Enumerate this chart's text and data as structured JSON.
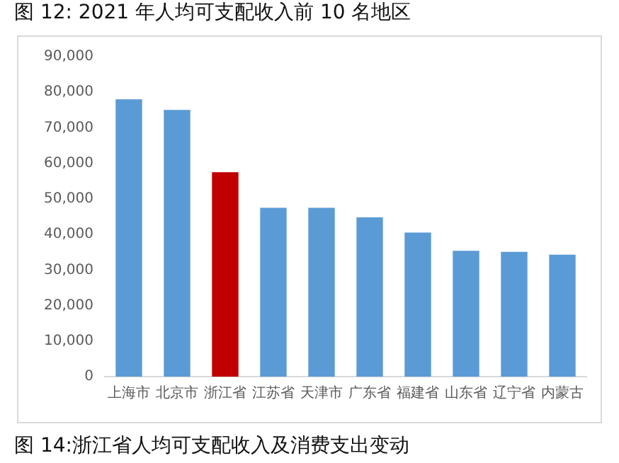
{
  "chart_data": {
    "type": "bar",
    "title": "图  12: 2021 年人均可支配收入前 10 名地区",
    "categories": [
      "上海市",
      "北京市",
      "浙江省",
      "江苏省",
      "天津市",
      "广东省",
      "福建省",
      "山东省",
      "辽宁省",
      "内蒙古"
    ],
    "values": [
      78000,
      75000,
      57500,
      47500,
      47500,
      44800,
      40500,
      35400,
      35100,
      34300
    ],
    "colors": [
      "#5b9bd5",
      "#5b9bd5",
      "#c00000",
      "#5b9bd5",
      "#5b9bd5",
      "#5b9bd5",
      "#5b9bd5",
      "#5b9bd5",
      "#5b9bd5",
      "#5b9bd5"
    ],
    "ylim": [
      0,
      90000
    ],
    "yticks": [
      0,
      {
        "value": 10000,
        "label": "10,000"
      },
      {
        "value": 20000,
        "label": "20,000"
      },
      {
        "value": 30000,
        "label": "30,000"
      },
      {
        "value": 40000,
        "label": "40,000"
      },
      {
        "value": 50000,
        "label": "50,000"
      },
      {
        "value": 60000,
        "label": "60,000"
      },
      {
        "value": 70000,
        "label": "70,000"
      },
      {
        "value": 80000,
        "label": "80,000"
      },
      {
        "value": 90000,
        "label": "90,000"
      }
    ],
    "grid": false,
    "legend": false,
    "annotations": [
      "图  14:浙江省人均可支配收入及消费支出变动"
    ]
  }
}
